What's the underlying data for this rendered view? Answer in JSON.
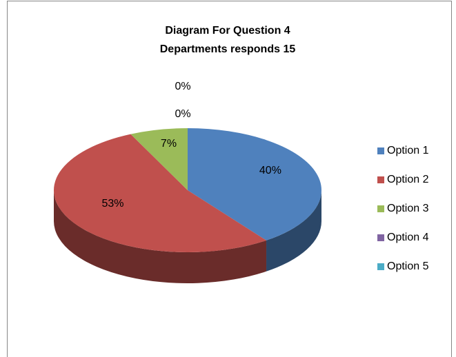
{
  "chart_data": {
    "type": "pie3d",
    "title": "Diagram For Question 4",
    "subtitle": "Departments responds 15",
    "categories": [
      "Option 1",
      "Option 2",
      "Option 3",
      "Option 4",
      "Option 5"
    ],
    "values": [
      40,
      53,
      7,
      0,
      0
    ],
    "value_labels": [
      "40%",
      "53%",
      "7%",
      "0%",
      "0%"
    ],
    "colors": [
      "#4f81bd",
      "#c0504d",
      "#9bbb59",
      "#8064a2",
      "#4bacc6"
    ],
    "legend": "right"
  }
}
